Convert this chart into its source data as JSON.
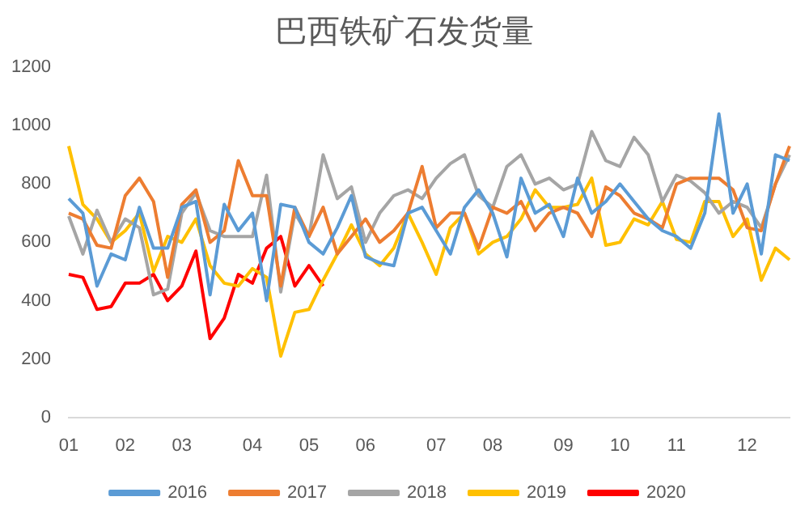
{
  "chart_data": {
    "type": "line",
    "title": "巴西铁矿石发货量",
    "categories": [
      "01",
      null,
      null,
      null,
      "02",
      null,
      null,
      null,
      "03",
      null,
      null,
      null,
      null,
      "04",
      null,
      null,
      null,
      "05",
      null,
      null,
      null,
      "06",
      null,
      null,
      null,
      null,
      "07",
      null,
      null,
      null,
      "08",
      null,
      null,
      null,
      null,
      "09",
      null,
      null,
      null,
      "10",
      null,
      null,
      null,
      "11",
      null,
      null,
      null,
      null,
      "12",
      null,
      null,
      null
    ],
    "series": [
      {
        "name": "2016",
        "color": "#5b9bd5",
        "values": [
          750,
          700,
          450,
          560,
          540,
          720,
          580,
          580,
          720,
          740,
          420,
          730,
          640,
          700,
          400,
          730,
          720,
          600,
          560,
          650,
          760,
          550,
          530,
          520,
          700,
          720,
          640,
          560,
          720,
          780,
          700,
          550,
          820,
          700,
          730,
          620,
          820,
          700,
          740,
          800,
          740,
          680,
          640,
          620,
          580,
          700,
          1040,
          700,
          800,
          560,
          900,
          880
        ]
      },
      {
        "name": "2017",
        "color": "#ed7d31",
        "values": [
          700,
          680,
          590,
          580,
          760,
          820,
          740,
          480,
          730,
          780,
          600,
          640,
          880,
          760,
          760,
          450,
          720,
          620,
          720,
          560,
          620,
          680,
          600,
          640,
          700,
          860,
          650,
          700,
          700,
          580,
          720,
          700,
          740,
          640,
          700,
          720,
          700,
          620,
          790,
          760,
          700,
          680,
          650,
          800,
          820,
          820,
          820,
          780,
          650,
          640,
          800,
          930
        ]
      },
      {
        "name": "2018",
        "color": "#a5a5a5",
        "values": [
          690,
          560,
          710,
          600,
          680,
          650,
          420,
          440,
          700,
          770,
          640,
          620,
          620,
          620,
          830,
          430,
          700,
          620,
          900,
          750,
          790,
          600,
          700,
          760,
          780,
          750,
          820,
          870,
          900,
          760,
          720,
          860,
          900,
          800,
          820,
          780,
          800,
          980,
          880,
          860,
          960,
          900,
          740,
          830,
          810,
          770,
          700,
          740,
          720,
          650,
          800,
          900
        ]
      },
      {
        "name": "2019",
        "color": "#ffc000",
        "values": [
          930,
          730,
          680,
          600,
          640,
          700,
          500,
          620,
          600,
          680,
          520,
          460,
          450,
          510,
          480,
          210,
          360,
          370,
          470,
          560,
          660,
          560,
          520,
          580,
          700,
          600,
          490,
          650,
          700,
          560,
          600,
          620,
          680,
          780,
          720,
          720,
          730,
          820,
          590,
          600,
          680,
          660,
          740,
          610,
          600,
          740,
          740,
          620,
          680,
          470,
          580,
          540
        ]
      },
      {
        "name": "2020",
        "color": "#ff0000",
        "values": [
          490,
          480,
          370,
          380,
          460,
          460,
          490,
          400,
          450,
          570,
          270,
          340,
          490,
          460,
          580,
          620,
          450,
          520,
          450,
          null,
          null,
          null,
          null,
          null,
          null,
          null,
          null,
          null,
          null,
          null,
          null,
          null,
          null,
          null,
          null,
          null,
          null,
          null,
          null,
          null,
          null,
          null,
          null,
          null,
          null,
          null,
          null,
          null,
          null,
          null,
          null,
          null
        ]
      }
    ],
    "ylim": [
      0,
      1200
    ],
    "yticks": [
      0,
      200,
      400,
      600,
      800,
      1000,
      1200
    ],
    "grid": false,
    "legend": "bottom",
    "marker": "none",
    "line_style": "solid"
  }
}
